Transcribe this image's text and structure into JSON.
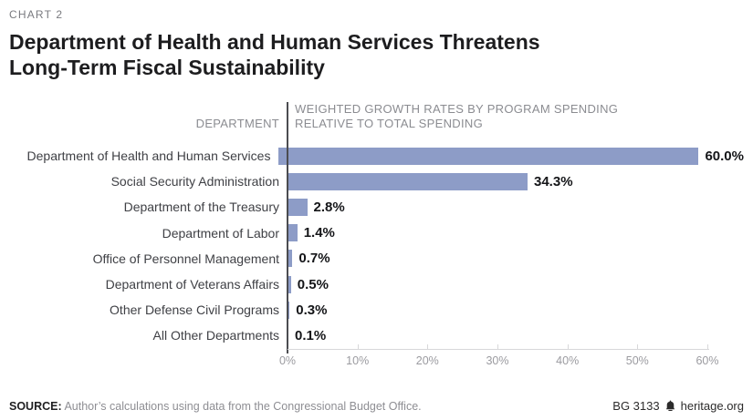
{
  "kicker": "CHART 2",
  "title_lines": [
    "Department of Health and Human Services Threatens",
    "Long-Term Fiscal Sustainability"
  ],
  "chart_data": {
    "type": "bar",
    "orientation": "horizontal",
    "column_header_left": "DEPARTMENT",
    "header_right_lines": [
      "WEIGHTED GROWTH RATES BY PROGRAM SPENDING",
      "RELATIVE TO TOTAL SPENDING"
    ],
    "categories": [
      "Department of Health and Human Services",
      "Social Security Administration",
      "Department of the Treasury",
      "Department of Labor",
      "Office of Personnel Management",
      "Department of Veterans Affairs",
      "Other Defense Civil Programs",
      "All Other Departments"
    ],
    "values": [
      60.0,
      34.3,
      2.8,
      1.4,
      0.7,
      0.5,
      0.3,
      0.1
    ],
    "value_labels": [
      "60.0%",
      "34.3%",
      "2.8%",
      "1.4%",
      "0.7%",
      "0.5%",
      "0.3%",
      "0.1%"
    ],
    "xlim": [
      0,
      60
    ],
    "x_tick_values": [
      0,
      10,
      20,
      30,
      40,
      50,
      60
    ],
    "x_tick_labels": [
      "0%",
      "10%",
      "20%",
      "30%",
      "40%",
      "50%",
      "60%"
    ],
    "bar_color": "#8d9cc7",
    "grid": false,
    "legend": "none"
  },
  "footer": {
    "source_label": "SOURCE:",
    "source_text": " Author’s calculations using data from the Congressional Budget Office.",
    "report_id": "BG 3133",
    "logo_icon": "heritage-bell-icon",
    "site": "heritage.org"
  }
}
